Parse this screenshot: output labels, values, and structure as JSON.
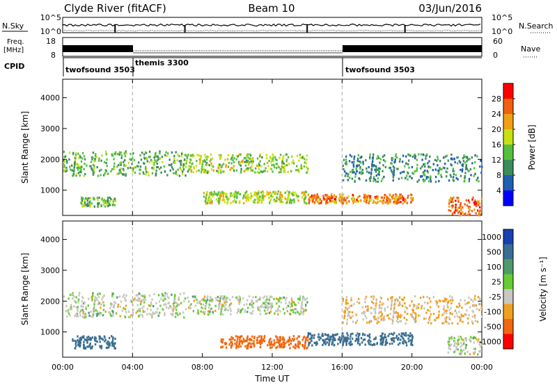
{
  "header": {
    "station": "Clyde River (fitACF)",
    "beam": "Beam 10",
    "date": "03/Jun/2016"
  },
  "panels": {
    "noise": {
      "left_label": "N.Sky",
      "right_label": "N.Search",
      "left_ticks": [
        "10^5",
        "10^0"
      ],
      "right_ticks": [
        "10^5",
        "10^0"
      ]
    },
    "freq": {
      "left_label_1": "Freq.",
      "left_label_2": "[MHz]",
      "right_label": "Nave",
      "left_ticks": [
        "18",
        "8"
      ],
      "right_ticks": [
        "60",
        "0"
      ]
    },
    "cpid": {
      "label": "CPID",
      "segments": [
        {
          "name": "twofsound 3503",
          "start_hour": 0
        },
        {
          "name": "themis 3300",
          "start_hour": 4
        },
        {
          "name": "twofsound 3503",
          "start_hour": 16
        }
      ]
    }
  },
  "colors": {
    "power_scale": [
      "#0000ff",
      "#1f5fb0",
      "#3c8c5c",
      "#55c040",
      "#c8e010",
      "#f0a010",
      "#f06010",
      "#ff0000"
    ],
    "velocity_scale": [
      "#1a3fb0",
      "#3a6e90",
      "#4e9a6a",
      "#66cc33",
      "#c8c8c0",
      "#f0a020",
      "#f06810",
      "#ff0000"
    ]
  },
  "chart_data": [
    {
      "type": "heatmap",
      "name": "power",
      "xlabel": "",
      "ylabel": "Slant Range [km]",
      "xlim": [
        0,
        24
      ],
      "ylim": [
        180,
        4600
      ],
      "y_ticks": [
        "1000",
        "2000",
        "3000",
        "4000"
      ],
      "colorbar_label": "Power [dB]",
      "colorbar_ticks": [
        "4",
        "8",
        "12",
        "16",
        "20",
        "24",
        "28"
      ],
      "colorbar_range": [
        0,
        32
      ],
      "scatter_bands": [
        {
          "start_hour": 0.0,
          "end_hour": 7.0,
          "range_km": [
            1500,
            2300
          ],
          "value": 13
        },
        {
          "start_hour": 1.0,
          "end_hour": 3.0,
          "range_km": [
            500,
            800
          ],
          "value": 14
        },
        {
          "start_hour": 7.0,
          "end_hour": 14.0,
          "range_km": [
            1600,
            2200
          ],
          "value": 16
        },
        {
          "start_hour": 8.0,
          "end_hour": 14.0,
          "range_km": [
            600,
            1000
          ],
          "value": 17
        },
        {
          "start_hour": 14.0,
          "end_hour": 20.0,
          "range_km": [
            600,
            900
          ],
          "value": 24
        },
        {
          "start_hour": 16.0,
          "end_hour": 24.0,
          "range_km": [
            1300,
            2200
          ],
          "value": 10
        },
        {
          "start_hour": 22.0,
          "end_hour": 24.0,
          "range_km": [
            200,
            800
          ],
          "value": 26
        }
      ]
    },
    {
      "type": "heatmap",
      "name": "velocity",
      "xlabel": "Time UT",
      "ylabel": "Slant Range [km]",
      "xlim": [
        0,
        24
      ],
      "ylim": [
        180,
        4600
      ],
      "x_ticks": [
        "00:00",
        "04:00",
        "08:00",
        "12:00",
        "16:00",
        "20:00",
        "00:00"
      ],
      "y_ticks": [
        "1000",
        "2000",
        "3000",
        "4000"
      ],
      "colorbar_label": "Velocity [m s⁻¹]",
      "colorbar_ticks": [
        "1000",
        "500",
        "100",
        "25",
        "-25",
        "-100",
        "-500",
        "-1000"
      ],
      "scatter_bands": [
        {
          "start_hour": 0.0,
          "end_hour": 7.0,
          "range_km": [
            1500,
            2300
          ],
          "value": 0
        },
        {
          "start_hour": 0.5,
          "end_hour": 3.0,
          "range_km": [
            500,
            900
          ],
          "value": 300
        },
        {
          "start_hour": 7.0,
          "end_hour": 14.0,
          "range_km": [
            1600,
            2200
          ],
          "value": 0
        },
        {
          "start_hour": 9.0,
          "end_hour": 14.0,
          "range_km": [
            500,
            900
          ],
          "value": -200
        },
        {
          "start_hour": 14.0,
          "end_hour": 20.0,
          "range_km": [
            600,
            1000
          ],
          "value": 200
        },
        {
          "start_hour": 16.0,
          "end_hour": 24.0,
          "range_km": [
            1300,
            2200
          ],
          "value": -30
        },
        {
          "start_hour": 22.0,
          "end_hour": 24.0,
          "range_km": [
            300,
            900
          ],
          "value": 0
        }
      ]
    }
  ]
}
